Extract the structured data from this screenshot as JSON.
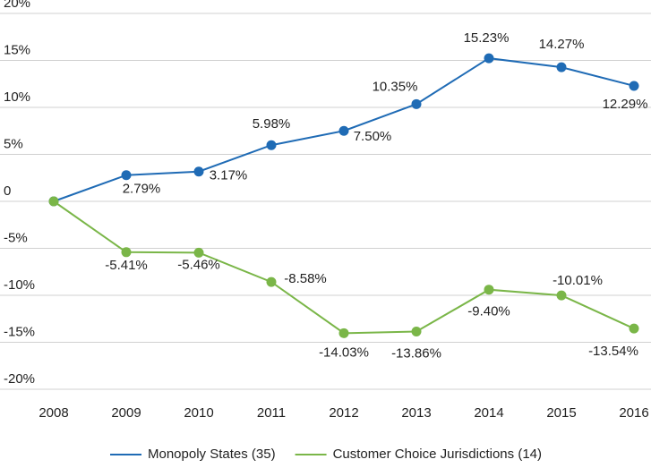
{
  "chart_data": {
    "type": "line",
    "categories": [
      "2008",
      "2009",
      "2010",
      "2011",
      "2012",
      "2013",
      "2014",
      "2015",
      "2016"
    ],
    "series": [
      {
        "name": "Monopoly States (35)",
        "color": "#1f6bb5",
        "values": [
          0,
          2.79,
          3.17,
          5.98,
          7.5,
          10.35,
          15.23,
          14.27,
          12.29
        ],
        "value_labels": [
          null,
          "2.79%",
          "3.17%",
          "5.98%",
          "7.50%",
          "10.35%",
          "15.23%",
          "14.27%",
          "12.29%"
        ]
      },
      {
        "name": "Customer Choice Jurisdictions (14)",
        "color": "#7ab648",
        "values": [
          0,
          -5.41,
          -5.46,
          -8.58,
          -14.03,
          -13.86,
          -9.4,
          -10.01,
          -13.54
        ],
        "value_labels": [
          null,
          "-5.41%",
          "-5.46%",
          "-8.58%",
          "-14.03%",
          "-13.86%",
          "-9.40%",
          "-10.01%",
          "-13.54%"
        ]
      }
    ],
    "ylim": [
      -20,
      20
    ],
    "yticks": [
      {
        "value": 20,
        "label": "20%"
      },
      {
        "value": 15,
        "label": "15%"
      },
      {
        "value": 10,
        "label": "10%"
      },
      {
        "value": 5,
        "label": "5%"
      },
      0,
      {
        "value": -5,
        "label": "-5%"
      },
      {
        "value": -10,
        "label": "-10%"
      },
      {
        "value": -15,
        "label": "-15%"
      },
      {
        "value": -20,
        "label": "-20%"
      }
    ],
    "grid": true,
    "legend": "bottom"
  }
}
